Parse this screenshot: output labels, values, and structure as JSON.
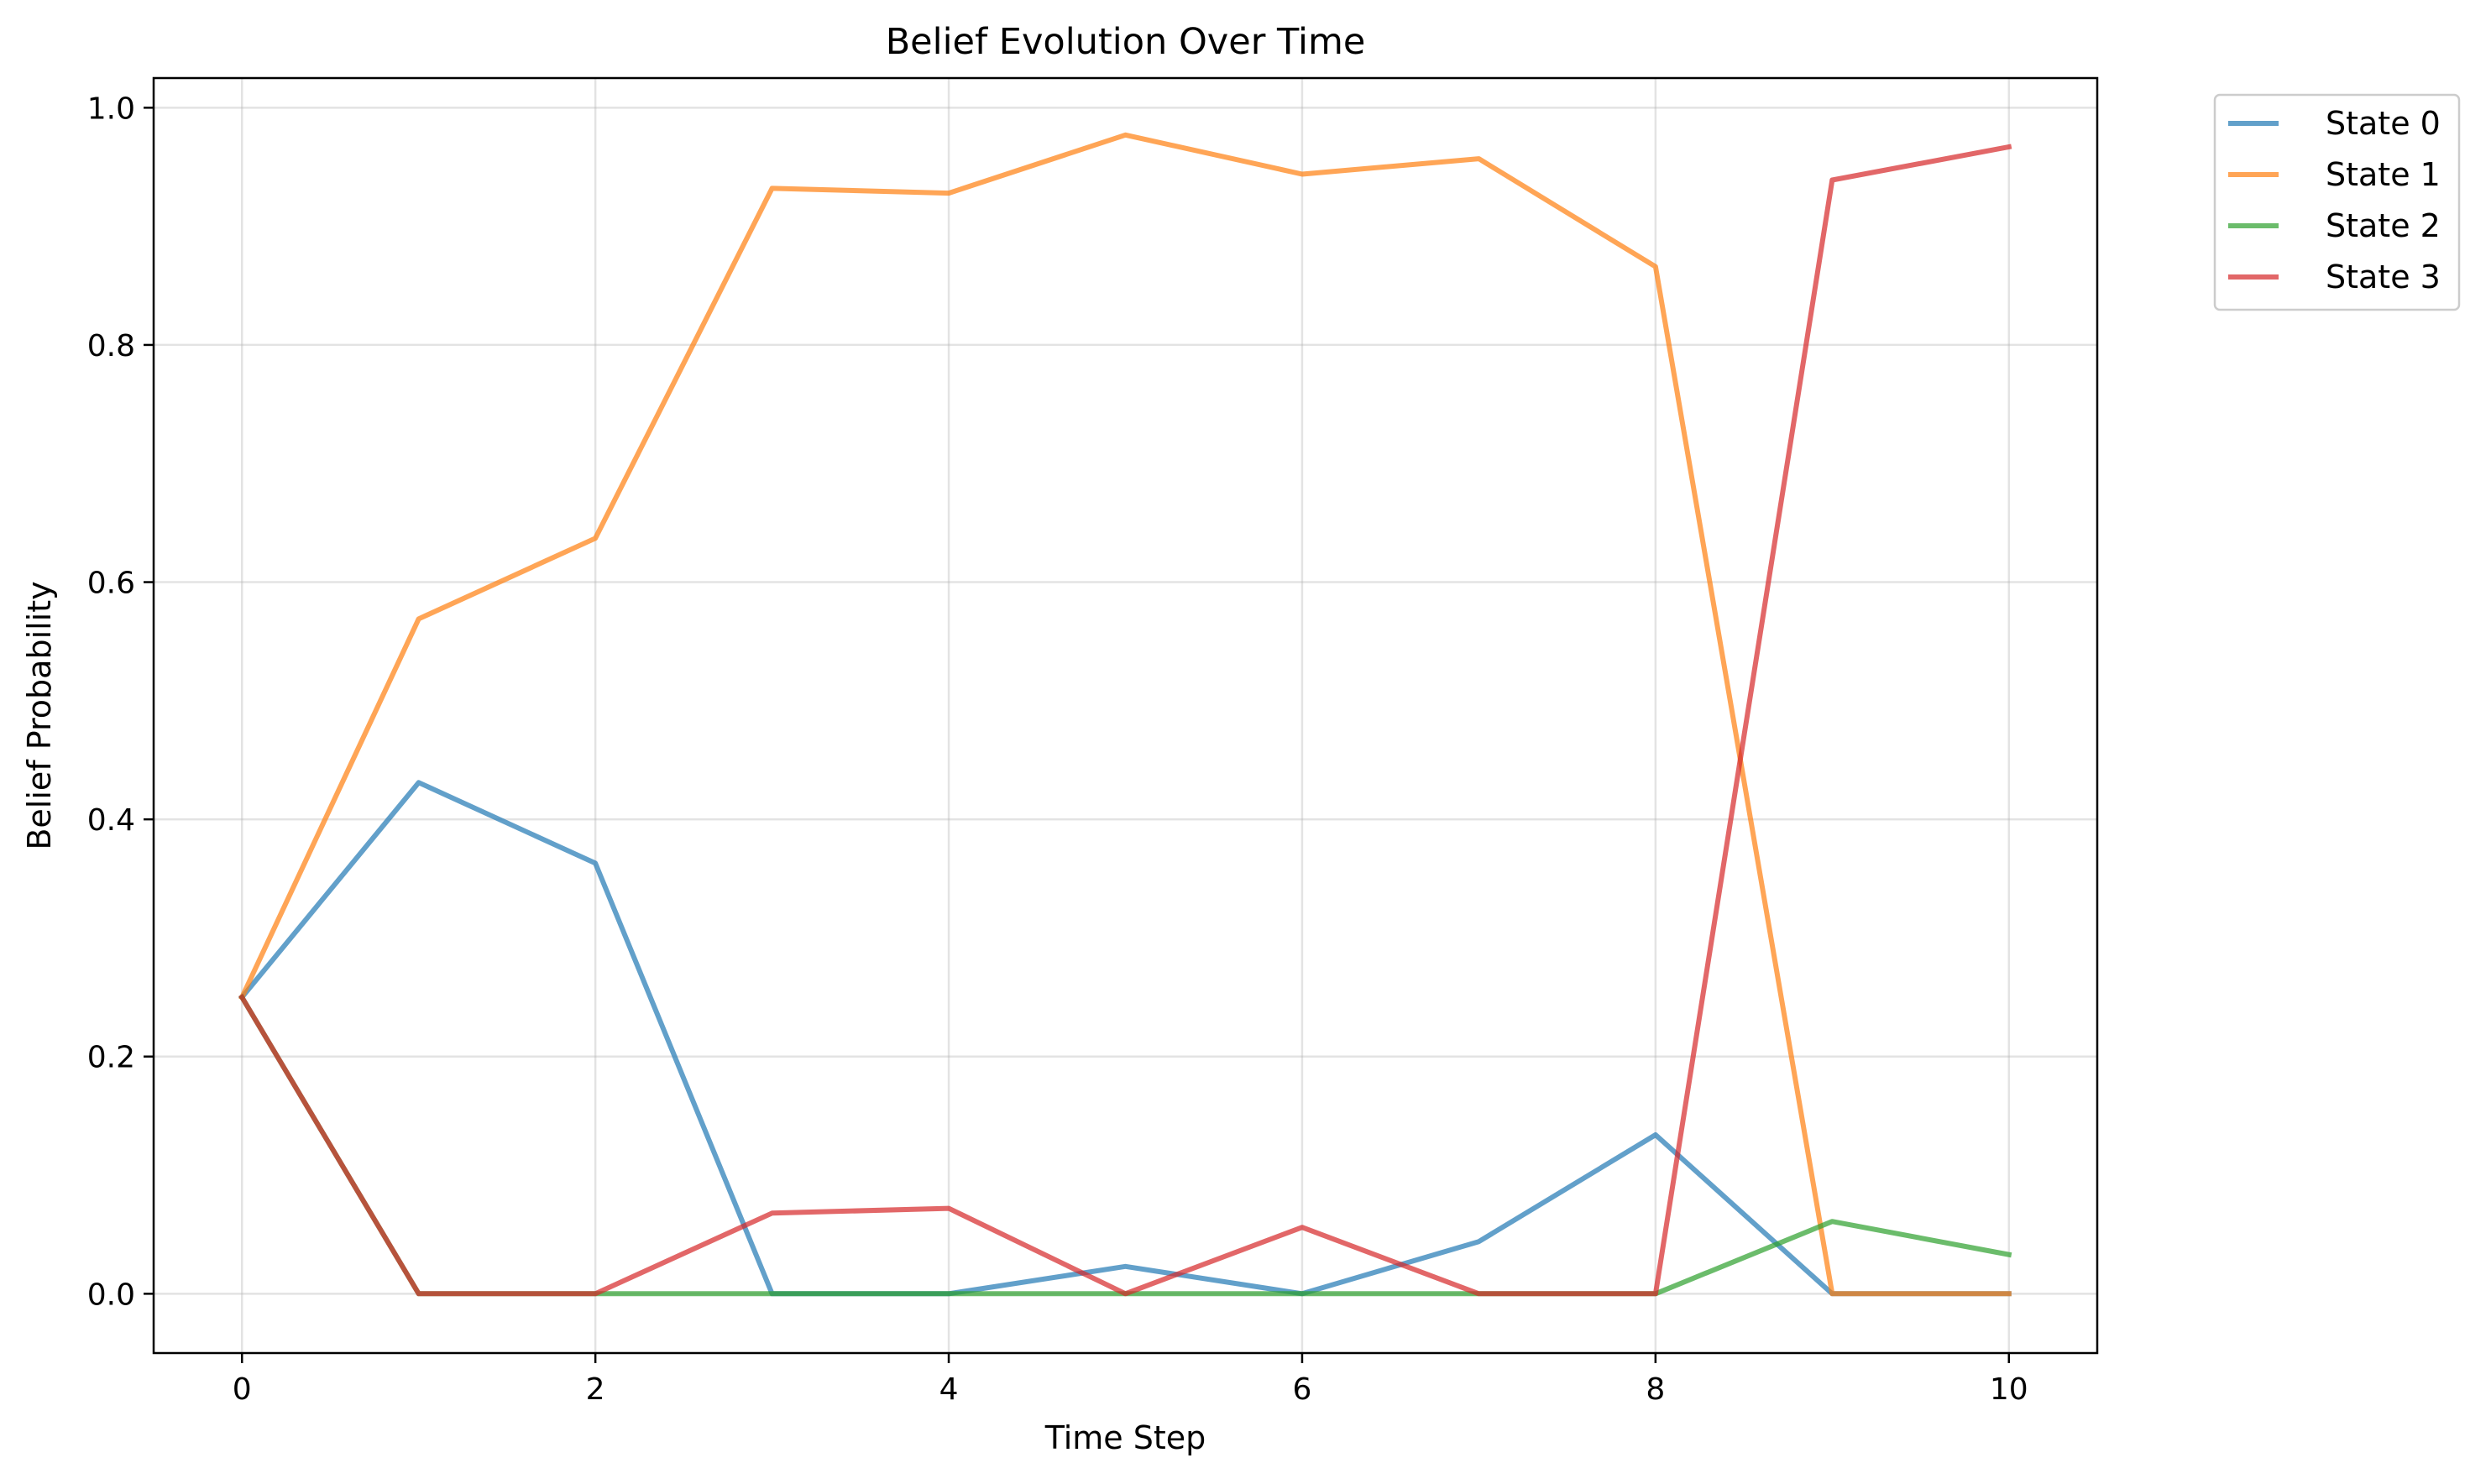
{
  "chart_data": {
    "type": "line",
    "title": "Belief Evolution Over Time",
    "xlabel": "Time Step",
    "ylabel": "Belief Probability",
    "xlim": [
      -0.5,
      10.5
    ],
    "ylim": [
      -0.05,
      1.025
    ],
    "xticks": [
      0,
      2,
      4,
      6,
      8,
      10
    ],
    "xtick_labels": [
      "0",
      "2",
      "4",
      "6",
      "8",
      "10"
    ],
    "yticks": [
      0.0,
      0.2,
      0.4,
      0.6,
      0.8,
      1.0
    ],
    "ytick_labels": [
      "0.0",
      "0.2",
      "0.4",
      "0.6",
      "0.8",
      "1.0"
    ],
    "grid": true,
    "legend_position": "outside-upper-right",
    "x": [
      0,
      1,
      2,
      3,
      4,
      5,
      6,
      7,
      8,
      9,
      10
    ],
    "series": [
      {
        "name": "State 0",
        "color": "#1f77b4",
        "values": [
          0.25,
          0.431,
          0.363,
          0.0,
          0.0,
          0.023,
          0.0,
          0.044,
          0.134,
          0.0,
          0.0
        ]
      },
      {
        "name": "State 1",
        "color": "#ff7f0e",
        "values": [
          0.25,
          0.569,
          0.637,
          0.932,
          0.928,
          0.977,
          0.944,
          0.957,
          0.866,
          0.0,
          0.0
        ]
      },
      {
        "name": "State 2",
        "color": "#2ca02c",
        "values": [
          0.25,
          0.0,
          0.0,
          0.0,
          0.0,
          0.0,
          0.0,
          0.0,
          0.0,
          0.061,
          0.033
        ]
      },
      {
        "name": "State 3",
        "color": "#d62728",
        "values": [
          0.25,
          0.0,
          0.0,
          0.068,
          0.072,
          0.0,
          0.056,
          0.0,
          0.0,
          0.939,
          0.967
        ]
      }
    ]
  }
}
